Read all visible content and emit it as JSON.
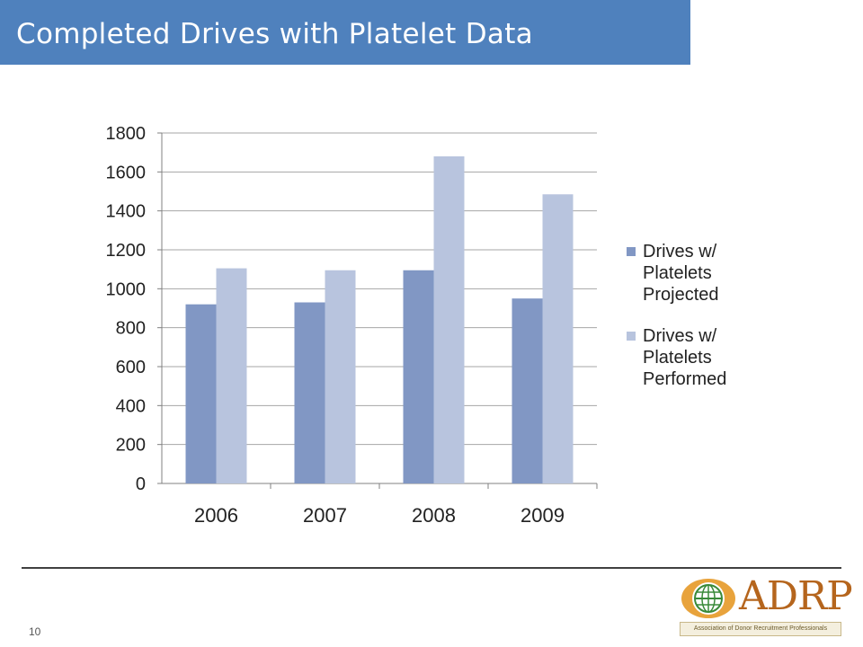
{
  "header": {
    "title": "Completed Drives with Platelet Data"
  },
  "footer": {
    "page_number": "10"
  },
  "logo": {
    "name": "ADRP",
    "subtitle": "Association of Donor Recruitment Professionals",
    "icon": "globe-icon"
  },
  "colors": {
    "title_bar": "#4f81bd",
    "projected": "#8197c4",
    "performed": "#b8c4de"
  },
  "chart_data": {
    "type": "bar",
    "categories": [
      "2006",
      "2007",
      "2008",
      "2009"
    ],
    "series": [
      {
        "name": "Drives w/ Platelets Projected",
        "values": [
          920,
          930,
          1095,
          950
        ]
      },
      {
        "name": "Drives w/ Platelets Performed",
        "values": [
          1105,
          1095,
          1680,
          1485
        ]
      }
    ],
    "y_ticks": [
      "0",
      "200",
      "400",
      "600",
      "800",
      "1000",
      "1200",
      "1400",
      "1600",
      "1800"
    ],
    "ylim": [
      0,
      1800
    ],
    "title": "",
    "xlabel": "",
    "ylabel": "",
    "grid": true,
    "legend": "right"
  }
}
